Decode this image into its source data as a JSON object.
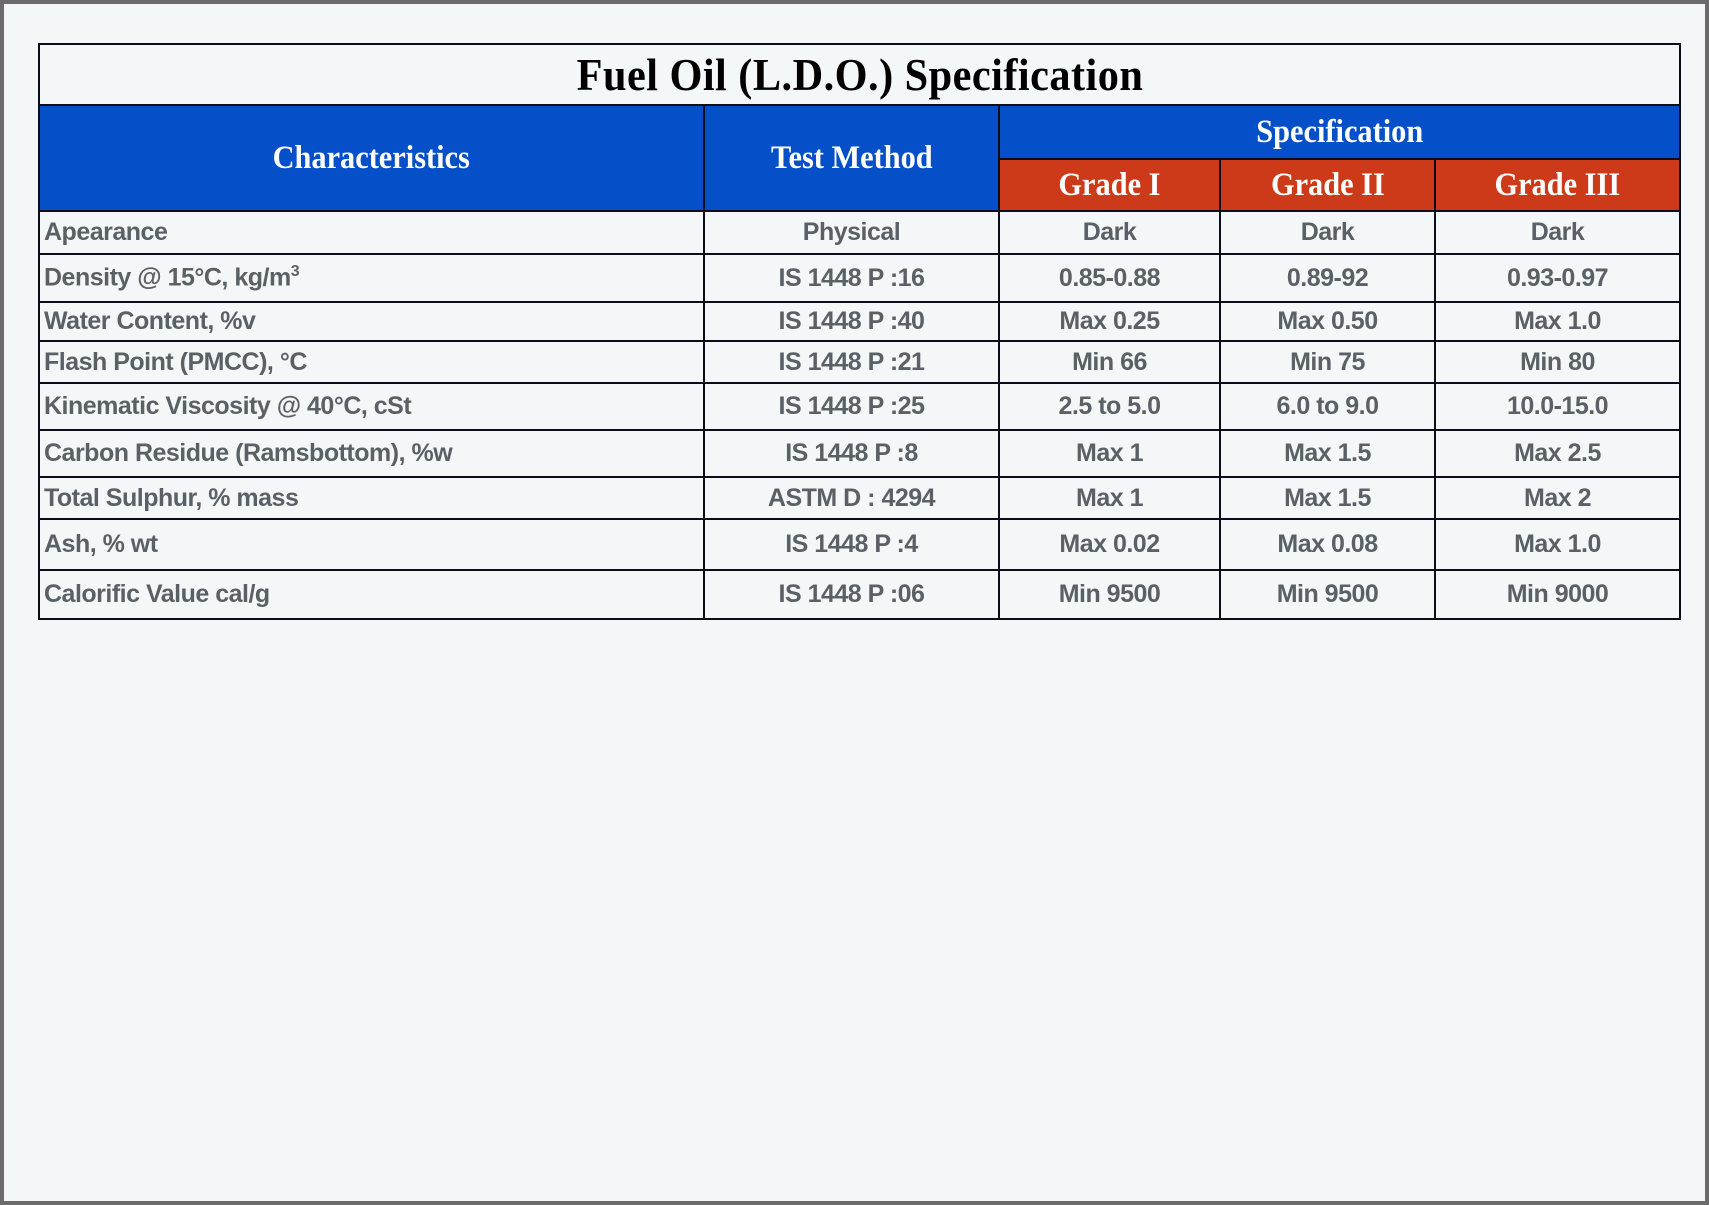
{
  "title": "Fuel Oil (L.D.O.) Specification",
  "headers": {
    "characteristics": "Characteristics",
    "test_method": "Test Method",
    "specification": "Specification",
    "grades": [
      "Grade I",
      "Grade II",
      "Grade III"
    ]
  },
  "colors": {
    "header_blue": "#0550c8",
    "grade_red": "#cc3a1a",
    "text": "#5a6166"
  },
  "rows": [
    {
      "characteristic": "Apearance",
      "method": "Physical",
      "g1": "Dark",
      "g2": "Dark",
      "g3": "Dark"
    },
    {
      "characteristic": "Density @ 15°C, kg/m",
      "sup": "3",
      "method": "IS 1448 P :16",
      "g1": "0.85-0.88",
      "g2": "0.89-92",
      "g3": "0.93-0.97"
    },
    {
      "characteristic": "Water Content, %v",
      "method": "IS 1448 P :40",
      "g1": "Max 0.25",
      "g2": "Max 0.50",
      "g3": "Max 1.0"
    },
    {
      "characteristic": "Flash Point (PMCC), °C",
      "method": "IS 1448 P :21",
      "g1": "Min 66",
      "g2": "Min 75",
      "g3": "Min 80"
    },
    {
      "characteristic": "Kinematic Viscosity @ 40°C, cSt",
      "method": "IS 1448 P :25",
      "g1": "2.5 to 5.0",
      "g2": "6.0 to 9.0",
      "g3": "10.0-15.0"
    },
    {
      "characteristic": "Carbon Residue (Ramsbottom), %w",
      "method": "IS 1448 P :8",
      "g1": "Max 1",
      "g2": "Max 1.5",
      "g3": "Max 2.5"
    },
    {
      "characteristic": "Total Sulphur, % mass",
      "method": "ASTM D : 4294",
      "g1": "Max 1",
      "g2": "Max 1.5",
      "g3": "Max 2"
    },
    {
      "characteristic": "Ash, % wt",
      "method": "IS 1448 P :4",
      "g1": "Max 0.02",
      "g2": "Max 0.08",
      "g3": "Max 1.0"
    },
    {
      "characteristic": "Calorific Value cal/g",
      "method": "IS 1448 P :06",
      "g1": "Min 9500",
      "g2": "Min 9500",
      "g3": "Min 9000"
    }
  ]
}
